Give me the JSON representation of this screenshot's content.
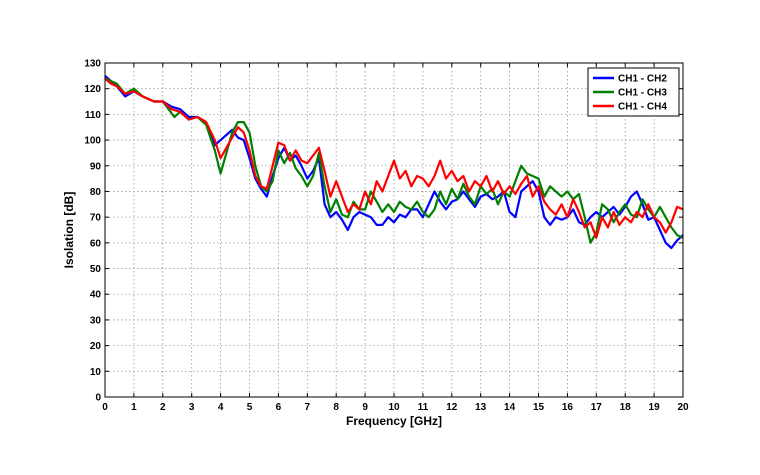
{
  "chart_data": {
    "type": "line",
    "title": "",
    "xlabel": "Frequency [GHz]",
    "ylabel": "Isolation [dB]",
    "xlim": [
      0,
      20
    ],
    "ylim": [
      0,
      130
    ],
    "xticks": [
      0,
      1,
      2,
      3,
      4,
      5,
      6,
      7,
      8,
      9,
      10,
      11,
      12,
      13,
      14,
      15,
      16,
      17,
      18,
      19,
      20
    ],
    "yticks": [
      0,
      10,
      20,
      30,
      40,
      50,
      60,
      70,
      80,
      90,
      100,
      110,
      120,
      130
    ],
    "grid": true,
    "legend_position": "top-right",
    "series": [
      {
        "name": "CH1 - CH2",
        "color": "#0000ff",
        "points": [
          [
            0,
            125
          ],
          [
            0.2,
            123
          ],
          [
            0.4,
            121
          ],
          [
            0.7,
            117
          ],
          [
            1.0,
            119
          ],
          [
            1.3,
            117
          ],
          [
            1.7,
            115
          ],
          [
            2.0,
            115
          ],
          [
            2.3,
            113
          ],
          [
            2.6,
            112
          ],
          [
            2.9,
            109
          ],
          [
            3.2,
            109
          ],
          [
            3.5,
            107
          ],
          [
            3.8,
            98
          ],
          [
            4.0,
            100
          ],
          [
            4.2,
            102
          ],
          [
            4.4,
            104
          ],
          [
            4.6,
            101
          ],
          [
            4.8,
            100
          ],
          [
            5.0,
            93
          ],
          [
            5.2,
            85
          ],
          [
            5.4,
            81
          ],
          [
            5.6,
            78
          ],
          [
            5.8,
            86
          ],
          [
            6.0,
            93
          ],
          [
            6.2,
            97
          ],
          [
            6.4,
            92
          ],
          [
            6.6,
            94
          ],
          [
            6.8,
            90
          ],
          [
            7.0,
            85
          ],
          [
            7.2,
            88
          ],
          [
            7.4,
            93
          ],
          [
            7.6,
            75
          ],
          [
            7.8,
            70
          ],
          [
            8.0,
            72
          ],
          [
            8.2,
            69
          ],
          [
            8.4,
            65
          ],
          [
            8.6,
            70
          ],
          [
            8.8,
            72
          ],
          [
            9.0,
            71
          ],
          [
            9.2,
            70
          ],
          [
            9.4,
            67
          ],
          [
            9.6,
            67
          ],
          [
            9.8,
            70
          ],
          [
            10.0,
            68
          ],
          [
            10.2,
            71
          ],
          [
            10.4,
            70
          ],
          [
            10.6,
            73
          ],
          [
            10.8,
            73
          ],
          [
            11.0,
            70
          ],
          [
            11.2,
            75
          ],
          [
            11.4,
            80
          ],
          [
            11.6,
            76
          ],
          [
            11.8,
            73
          ],
          [
            12.0,
            76
          ],
          [
            12.2,
            77
          ],
          [
            12.4,
            80
          ],
          [
            12.6,
            77
          ],
          [
            12.8,
            74
          ],
          [
            13.0,
            78
          ],
          [
            13.2,
            79
          ],
          [
            13.4,
            77
          ],
          [
            13.6,
            78
          ],
          [
            13.8,
            80
          ],
          [
            14.0,
            72
          ],
          [
            14.2,
            70
          ],
          [
            14.4,
            80
          ],
          [
            14.6,
            82
          ],
          [
            14.8,
            84
          ],
          [
            15.0,
            80
          ],
          [
            15.2,
            70
          ],
          [
            15.4,
            67
          ],
          [
            15.6,
            70
          ],
          [
            15.8,
            69
          ],
          [
            16.0,
            70
          ],
          [
            16.2,
            73
          ],
          [
            16.4,
            68
          ],
          [
            16.6,
            67
          ],
          [
            16.8,
            70
          ],
          [
            17.0,
            72
          ],
          [
            17.2,
            70
          ],
          [
            17.4,
            72
          ],
          [
            17.6,
            74
          ],
          [
            17.8,
            71
          ],
          [
            18.0,
            74
          ],
          [
            18.2,
            78
          ],
          [
            18.4,
            80
          ],
          [
            18.6,
            75
          ],
          [
            18.8,
            69
          ],
          [
            19.0,
            70
          ],
          [
            19.2,
            65
          ],
          [
            19.4,
            60
          ],
          [
            19.6,
            58
          ],
          [
            19.8,
            61
          ],
          [
            20.0,
            63
          ]
        ]
      },
      {
        "name": "CH1 - CH3",
        "color": "#008000",
        "points": [
          [
            0,
            124
          ],
          [
            0.2,
            123
          ],
          [
            0.4,
            122
          ],
          [
            0.7,
            118
          ],
          [
            1.0,
            120
          ],
          [
            1.3,
            117
          ],
          [
            1.7,
            115
          ],
          [
            2.0,
            115
          ],
          [
            2.2,
            112
          ],
          [
            2.4,
            109
          ],
          [
            2.6,
            111
          ],
          [
            2.9,
            108
          ],
          [
            3.2,
            109
          ],
          [
            3.5,
            106
          ],
          [
            3.8,
            96
          ],
          [
            4.0,
            87
          ],
          [
            4.2,
            95
          ],
          [
            4.4,
            103
          ],
          [
            4.6,
            107
          ],
          [
            4.8,
            107
          ],
          [
            5.0,
            103
          ],
          [
            5.2,
            90
          ],
          [
            5.4,
            82
          ],
          [
            5.6,
            80
          ],
          [
            5.8,
            84
          ],
          [
            6.0,
            96
          ],
          [
            6.2,
            91
          ],
          [
            6.4,
            95
          ],
          [
            6.6,
            89
          ],
          [
            6.8,
            86
          ],
          [
            7.0,
            82
          ],
          [
            7.2,
            86
          ],
          [
            7.4,
            95
          ],
          [
            7.6,
            82
          ],
          [
            7.8,
            72
          ],
          [
            8.0,
            77
          ],
          [
            8.2,
            71
          ],
          [
            8.4,
            70
          ],
          [
            8.6,
            76
          ],
          [
            8.8,
            73
          ],
          [
            9.0,
            73
          ],
          [
            9.2,
            80
          ],
          [
            9.4,
            76
          ],
          [
            9.6,
            72
          ],
          [
            9.8,
            75
          ],
          [
            10.0,
            72
          ],
          [
            10.2,
            76
          ],
          [
            10.4,
            74
          ],
          [
            10.6,
            73
          ],
          [
            10.8,
            76
          ],
          [
            11.0,
            72
          ],
          [
            11.2,
            70
          ],
          [
            11.4,
            73
          ],
          [
            11.6,
            80
          ],
          [
            11.8,
            75
          ],
          [
            12.0,
            81
          ],
          [
            12.2,
            77
          ],
          [
            12.4,
            83
          ],
          [
            12.6,
            78
          ],
          [
            12.8,
            75
          ],
          [
            13.0,
            82
          ],
          [
            13.2,
            79
          ],
          [
            13.4,
            81
          ],
          [
            13.6,
            75
          ],
          [
            13.8,
            80
          ],
          [
            14.0,
            78
          ],
          [
            14.2,
            84
          ],
          [
            14.4,
            90
          ],
          [
            14.6,
            87
          ],
          [
            14.8,
            86
          ],
          [
            15.0,
            85
          ],
          [
            15.2,
            78
          ],
          [
            15.4,
            82
          ],
          [
            15.6,
            80
          ],
          [
            15.8,
            78
          ],
          [
            16.0,
            80
          ],
          [
            16.2,
            77
          ],
          [
            16.4,
            79
          ],
          [
            16.6,
            70
          ],
          [
            16.8,
            60
          ],
          [
            17.0,
            64
          ],
          [
            17.2,
            75
          ],
          [
            17.4,
            73
          ],
          [
            17.6,
            68
          ],
          [
            17.8,
            72
          ],
          [
            18.0,
            75
          ],
          [
            18.2,
            71
          ],
          [
            18.4,
            70
          ],
          [
            18.6,
            77
          ],
          [
            18.8,
            73
          ],
          [
            19.0,
            70
          ],
          [
            19.2,
            74
          ],
          [
            19.4,
            70
          ],
          [
            19.6,
            66
          ],
          [
            19.8,
            63
          ],
          [
            20.0,
            62
          ]
        ]
      },
      {
        "name": "CH1 - CH4",
        "color": "#ff0000",
        "points": [
          [
            0,
            124
          ],
          [
            0.2,
            122
          ],
          [
            0.4,
            121
          ],
          [
            0.7,
            118
          ],
          [
            1.0,
            119
          ],
          [
            1.3,
            117
          ],
          [
            1.7,
            115
          ],
          [
            2.0,
            115
          ],
          [
            2.3,
            112
          ],
          [
            2.6,
            111
          ],
          [
            2.9,
            108
          ],
          [
            3.2,
            109
          ],
          [
            3.5,
            107
          ],
          [
            3.8,
            100
          ],
          [
            4.0,
            93
          ],
          [
            4.2,
            97
          ],
          [
            4.4,
            101
          ],
          [
            4.6,
            105
          ],
          [
            4.8,
            103
          ],
          [
            5.0,
            96
          ],
          [
            5.2,
            86
          ],
          [
            5.4,
            82
          ],
          [
            5.6,
            81
          ],
          [
            5.8,
            90
          ],
          [
            6.0,
            99
          ],
          [
            6.2,
            98
          ],
          [
            6.4,
            92
          ],
          [
            6.6,
            96
          ],
          [
            6.8,
            92
          ],
          [
            7.0,
            91
          ],
          [
            7.2,
            94
          ],
          [
            7.4,
            97
          ],
          [
            7.6,
            88
          ],
          [
            7.8,
            78
          ],
          [
            8.0,
            84
          ],
          [
            8.2,
            78
          ],
          [
            8.4,
            72
          ],
          [
            8.6,
            75
          ],
          [
            8.8,
            73
          ],
          [
            9.0,
            80
          ],
          [
            9.2,
            75
          ],
          [
            9.4,
            84
          ],
          [
            9.6,
            80
          ],
          [
            9.8,
            86
          ],
          [
            10.0,
            92
          ],
          [
            10.2,
            85
          ],
          [
            10.4,
            88
          ],
          [
            10.6,
            82
          ],
          [
            10.8,
            86
          ],
          [
            11.0,
            85
          ],
          [
            11.2,
            82
          ],
          [
            11.4,
            86
          ],
          [
            11.6,
            92
          ],
          [
            11.8,
            85
          ],
          [
            12.0,
            88
          ],
          [
            12.2,
            84
          ],
          [
            12.4,
            86
          ],
          [
            12.6,
            80
          ],
          [
            12.8,
            84
          ],
          [
            13.0,
            82
          ],
          [
            13.2,
            86
          ],
          [
            13.4,
            80
          ],
          [
            13.6,
            84
          ],
          [
            13.8,
            79
          ],
          [
            14.0,
            82
          ],
          [
            14.2,
            79
          ],
          [
            14.4,
            83
          ],
          [
            14.6,
            86
          ],
          [
            14.8,
            78
          ],
          [
            15.0,
            82
          ],
          [
            15.2,
            76
          ],
          [
            15.4,
            73
          ],
          [
            15.6,
            71
          ],
          [
            15.8,
            75
          ],
          [
            16.0,
            70
          ],
          [
            16.2,
            77
          ],
          [
            16.4,
            72
          ],
          [
            16.6,
            66
          ],
          [
            16.8,
            68
          ],
          [
            17.0,
            62
          ],
          [
            17.2,
            70
          ],
          [
            17.4,
            66
          ],
          [
            17.6,
            72
          ],
          [
            17.8,
            67
          ],
          [
            18.0,
            70
          ],
          [
            18.2,
            68
          ],
          [
            18.4,
            72
          ],
          [
            18.6,
            70
          ],
          [
            18.8,
            75
          ],
          [
            19.0,
            70
          ],
          [
            19.2,
            68
          ],
          [
            19.4,
            64
          ],
          [
            19.6,
            68
          ],
          [
            19.8,
            74
          ],
          [
            20.0,
            73
          ]
        ]
      }
    ]
  }
}
